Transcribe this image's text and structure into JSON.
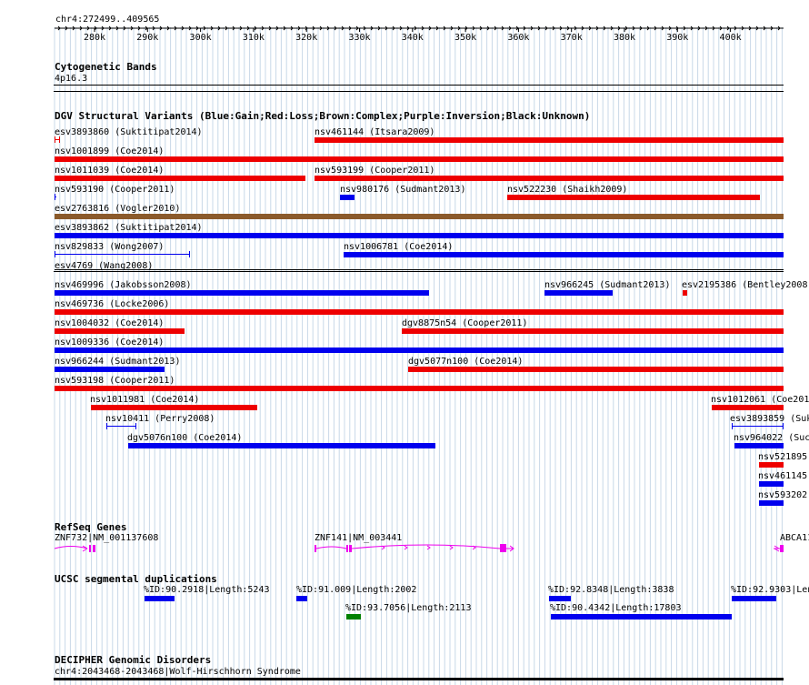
{
  "window": {
    "title": "chr4:272499..409565"
  },
  "ruler": {
    "ticks": [
      "280k",
      "290k",
      "300k",
      "310k",
      "320k",
      "330k",
      "340k",
      "350k",
      "360k",
      "370k",
      "380k",
      "390k",
      "400k"
    ]
  },
  "colors": {
    "gain": "#0000ee",
    "loss": "#ee0000",
    "complex": "#8b5a2b",
    "inversion": "#800080",
    "unknown": "#000000",
    "gene": "#ee00ee",
    "dup_green": "#008000",
    "grid": "#c8d8e8"
  },
  "tracks": {
    "cytobands": {
      "title": "Cytogenetic Bands",
      "band": "4p16.3"
    },
    "dgv": {
      "title": "DGV Structural Variants (Blue:Gain;Red:Loss;Brown:Complex;Purple:Inversion;Black:Unknown)"
    },
    "refseq": {
      "title": "RefSeq Genes"
    },
    "segdups": {
      "title": "UCSC segmental duplications"
    },
    "decipher": {
      "title": "DECIPHER Genomic Disorders",
      "item": "chr4:2043468-2043468|Wolf-Hirschhorn Syndrome"
    }
  },
  "dgv_features": [
    {
      "label": "esv3893860 (Suktitipat2014)",
      "type": "loss",
      "style": "thin"
    },
    {
      "label": "nsv461144 (Itsara2009)",
      "type": "loss"
    },
    {
      "label": "nsv1001899 (Coe2014)",
      "type": "loss"
    },
    {
      "label": "nsv1011039 (Coe2014)",
      "type": "loss"
    },
    {
      "label": "nsv593199 (Cooper2011)",
      "type": "loss"
    },
    {
      "label": "nsv593190 (Cooper2011)",
      "type": "gain",
      "style": "thin"
    },
    {
      "label": "nsv980176 (Sudmant2013)",
      "type": "gain"
    },
    {
      "label": "nsv522230 (Shaikh2009)",
      "type": "loss"
    },
    {
      "label": "esv2763816 (Vogler2010)",
      "type": "complex"
    },
    {
      "label": "esv3893862 (Suktitipat2014)",
      "type": "gain"
    },
    {
      "label": "nsv829833 (Wong2007)",
      "type": "gain",
      "style": "thin"
    },
    {
      "label": "nsv1006781 (Coe2014)",
      "type": "gain"
    },
    {
      "label": "esv4769 (Wang2008)",
      "type": "unknown",
      "style": "line"
    },
    {
      "label": "nsv469996 (Jakobsson2008)",
      "type": "gain"
    },
    {
      "label": "nsv966245 (Sudmant2013)",
      "type": "gain"
    },
    {
      "label": "esv2195386 (Bentley2008",
      "type": "loss"
    },
    {
      "label": "nsv469736 (Locke2006)",
      "type": "loss"
    },
    {
      "label": "nsv1004032 (Coe2014)",
      "type": "loss"
    },
    {
      "label": "dgv8875n54 (Cooper2011)",
      "type": "loss"
    },
    {
      "label": "nsv1009336 (Coe2014)",
      "type": "gain"
    },
    {
      "label": "nsv966244 (Sudmant2013)",
      "type": "gain"
    },
    {
      "label": "dgv5077n100 (Coe2014)",
      "type": "loss"
    },
    {
      "label": "nsv593198 (Cooper2011)",
      "type": "loss"
    },
    {
      "label": "nsv1011981 (Coe2014)",
      "type": "loss"
    },
    {
      "label": "nsv1012061 (Coe201",
      "type": "loss"
    },
    {
      "label": "nsv10411 (Perry2008)",
      "type": "gain",
      "style": "thin"
    },
    {
      "label": "esv3893859 (Suk",
      "type": "gain",
      "style": "thin"
    },
    {
      "label": "dgv5076n100 (Coe2014)",
      "type": "gain"
    },
    {
      "label": "nsv964022 (Suc",
      "type": "gain"
    },
    {
      "label": "nsv521895",
      "type": "loss"
    },
    {
      "label": "nsv461145",
      "type": "gain"
    },
    {
      "label": "nsv593202",
      "type": "gain"
    }
  ],
  "genes": [
    {
      "label": "ZNF732|NM_001137608"
    },
    {
      "label": "ZNF141|NM_003441"
    },
    {
      "label": "ABCA11"
    }
  ],
  "segdups": [
    {
      "label": "%ID:90.2918|Length:5243",
      "type": "gain"
    },
    {
      "label": "%ID:91.009|Length:2002",
      "type": "gain"
    },
    {
      "label": "%ID:92.8348|Length:3838",
      "type": "gain"
    },
    {
      "label": "%ID:92.9303|Len",
      "type": "gain"
    },
    {
      "label": "%ID:93.7056|Length:2113",
      "type": "green"
    },
    {
      "label": "%ID:90.4342|Length:17803",
      "type": "gain"
    }
  ]
}
